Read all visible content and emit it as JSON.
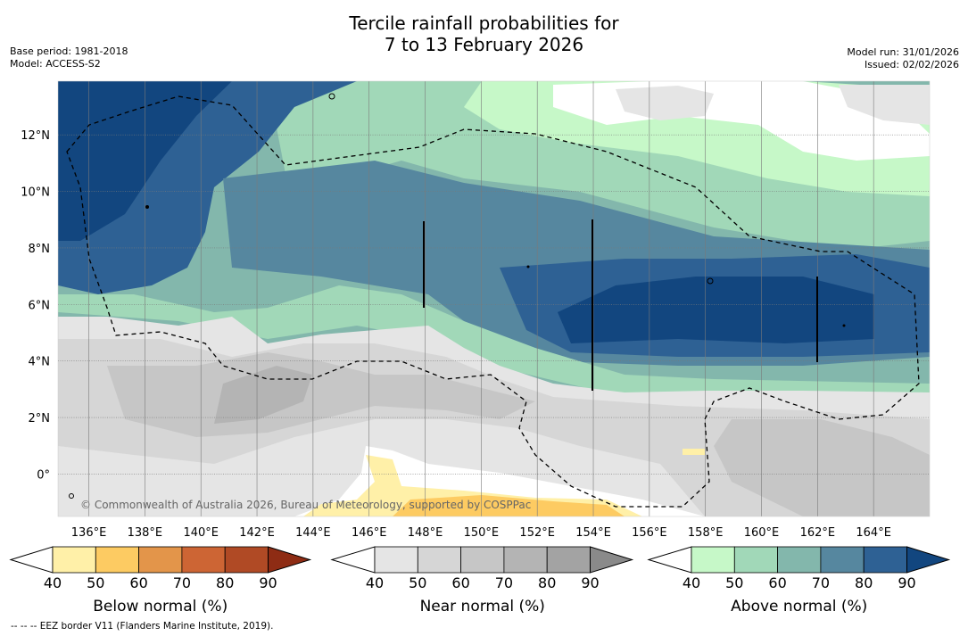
{
  "header": {
    "title_line1": "Tercile rainfall probabilities for",
    "title_line2": "7 to 13 February 2026",
    "base_period": "Base period: 1981-2018",
    "model": "Model: ACCESS-S2",
    "model_run": "Model run: 31/01/2026",
    "issued": "Issued: 02/02/2026"
  },
  "chart_data": {
    "type": "heatmap",
    "title": "Tercile rainfall probabilities for 7 to 13 February 2026",
    "x_ticks": [
      "136°E",
      "138°E",
      "140°E",
      "142°E",
      "144°E",
      "146°E",
      "148°E",
      "150°E",
      "152°E",
      "154°E",
      "156°E",
      "158°E",
      "160°E",
      "162°E",
      "164°E"
    ],
    "x_tick_values": [
      136,
      138,
      140,
      142,
      144,
      146,
      148,
      150,
      152,
      154,
      156,
      158,
      160,
      162,
      164
    ],
    "y_ticks": [
      "12°N",
      "10°N",
      "8°N",
      "6°N",
      "4°N",
      "2°N",
      "0°"
    ],
    "y_tick_values": [
      12,
      10,
      8,
      6,
      4,
      2,
      0
    ],
    "xlim": [
      134.9,
      166.0
    ],
    "ylim": [
      -1.5,
      13.9
    ],
    "grid": true,
    "watermark": "© Commonwealth of Australia 2026, Bureau of Meteorology, supported by COSPPac",
    "colorbars": [
      {
        "name": "below",
        "title": "Below normal (%)",
        "levels": [
          "40",
          "50",
          "60",
          "70",
          "80",
          "90"
        ],
        "colors": [
          "#fff0a8",
          "#fdcb62",
          "#e3954a",
          "#cd6534",
          "#b04a25",
          "#8e2c14"
        ]
      },
      {
        "name": "near",
        "title": "Near normal (%)",
        "levels": [
          "40",
          "50",
          "60",
          "70",
          "80",
          "90"
        ],
        "colors": [
          "#e5e5e5",
          "#d6d6d6",
          "#c6c6c6",
          "#b4b4b4",
          "#a3a3a3",
          "#8a8a8a"
        ]
      },
      {
        "name": "above",
        "title": "Above normal (%)",
        "levels": [
          "40",
          "50",
          "60",
          "70",
          "80",
          "90"
        ],
        "colors": [
          "#c6f8c8",
          "#a1d8b8",
          "#83b7ac",
          "#56879f",
          "#2e6194",
          "#12467f"
        ]
      }
    ],
    "regions": [
      {
        "category": "above",
        "level": "80-90",
        "approx": "northwest area, 135-143°E, 8-14°N"
      },
      {
        "category": "above",
        "level": "80-90",
        "approx": "east area, 156-165°E, 4-7°N"
      },
      {
        "category": "above",
        "level": "70-80",
        "approx": "central band, 136-165°E, 5-10°N"
      },
      {
        "category": "above",
        "level": "40-60",
        "approx": "northeast area, 150-166°E, 8-14°N"
      },
      {
        "category": "near",
        "level": "40-70",
        "approx": "southern half, 135-166°E, -1.5-5°N"
      },
      {
        "category": "below",
        "level": "40-60",
        "approx": "small patch, 146-155°E, -1.5-0.5°N"
      }
    ],
    "eez_border_note": "-- -- -- EEZ border V11 (Flanders Marine Institute, 2019)."
  }
}
